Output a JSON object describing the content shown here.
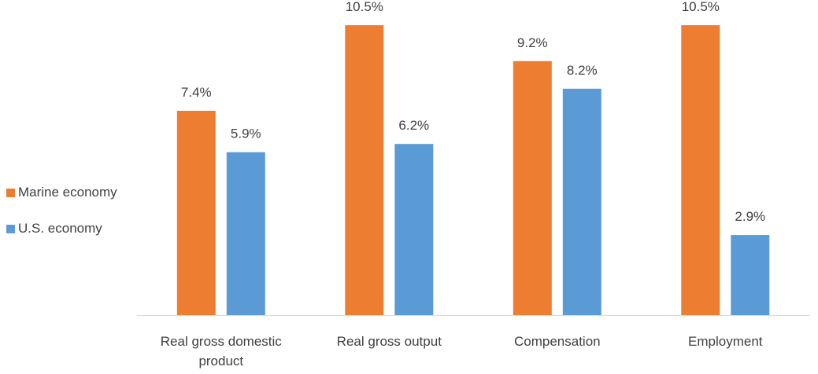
{
  "chart_data": {
    "type": "bar",
    "title": "",
    "xlabel": "",
    "ylabel": "",
    "ylim": [
      0,
      11.3
    ],
    "grid": false,
    "legend_position": "left",
    "categories": [
      [
        "Real gross domestic",
        "product"
      ],
      [
        "Real gross output"
      ],
      [
        "Compensation"
      ],
      [
        "Employment"
      ]
    ],
    "series": [
      {
        "name": "Marine economy",
        "color": "#ED7D31",
        "values": [
          7.4,
          10.5,
          9.2,
          10.5
        ],
        "labels": [
          "7.4%",
          "10.5%",
          "9.2%",
          "10.5%"
        ]
      },
      {
        "name": "U.S. economy",
        "color": "#5B9BD5",
        "values": [
          5.9,
          6.2,
          8.2,
          2.9
        ],
        "labels": [
          "5.9%",
          "6.2%",
          "8.2%",
          "2.9%"
        ]
      }
    ]
  }
}
